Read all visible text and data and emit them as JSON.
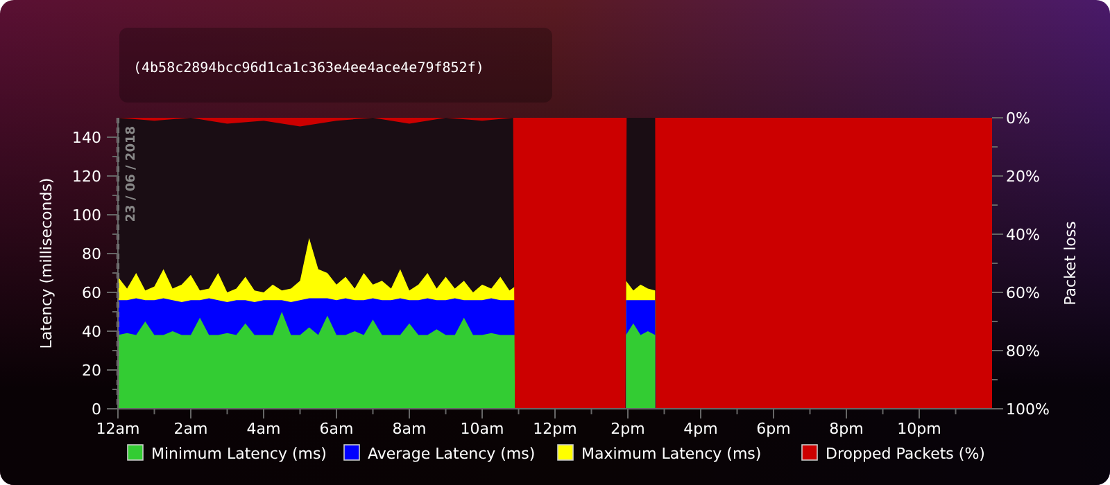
{
  "chart_data": {
    "type": "area",
    "subtitle": "(4b58c2894bcc96d1ca1c363e4ee4ace4e79f852f)",
    "ylabel": "Latency (milliseconds)",
    "y2label": "Packet loss",
    "xlim": [
      "2018-06-23T00:00",
      "2018-06-24T00:00"
    ],
    "xticks": [
      {
        "value": "2018-06-23T00:00",
        "label": "12am"
      },
      {
        "value": "2018-06-23T01:00",
        "label": null
      },
      {
        "value": "2018-06-23T02:00",
        "label": "2am"
      },
      {
        "value": "2018-06-23T03:00",
        "label": null
      },
      {
        "value": "2018-06-23T04:00",
        "label": "4am"
      },
      {
        "value": "2018-06-23T05:00",
        "label": null
      },
      {
        "value": "2018-06-23T06:00",
        "label": "6am"
      },
      {
        "value": "2018-06-23T07:00",
        "label": null
      },
      {
        "value": "2018-06-23T08:00",
        "label": "8am"
      },
      {
        "value": "2018-06-23T09:00",
        "label": null
      },
      {
        "value": "2018-06-23T10:00",
        "label": "10am"
      },
      {
        "value": "2018-06-23T11:00",
        "label": null
      },
      {
        "value": "2018-06-23T12:00",
        "label": "12pm"
      },
      {
        "value": "2018-06-23T13:00",
        "label": null
      },
      {
        "value": "2018-06-23T14:00",
        "label": "2pm"
      },
      {
        "value": "2018-06-23T15:00",
        "label": null
      },
      {
        "value": "2018-06-23T16:00",
        "label": "4pm"
      },
      {
        "value": "2018-06-23T17:00",
        "label": null
      },
      {
        "value": "2018-06-23T18:00",
        "label": "6pm"
      },
      {
        "value": "2018-06-23T19:00",
        "label": null
      },
      {
        "value": "2018-06-23T20:00",
        "label": "8pm"
      },
      {
        "value": "2018-06-23T21:00",
        "label": null
      },
      {
        "value": "2018-06-23T22:00",
        "label": "10pm"
      },
      {
        "value": "2018-06-23T23:00",
        "label": null
      }
    ],
    "ylim": [
      0,
      150
    ],
    "yticks": [
      0,
      {
        "value": 10,
        "label": null
      },
      20,
      {
        "value": 30,
        "label": null
      },
      40,
      {
        "value": 50,
        "label": null
      },
      60,
      {
        "value": 70,
        "label": null
      },
      80,
      {
        "value": 90,
        "label": null
      },
      100,
      {
        "value": 110,
        "label": null
      },
      120,
      {
        "value": 130,
        "label": null
      },
      140
    ],
    "y2lim": [
      100,
      0
    ],
    "y2ticks": [
      {
        "value": 0,
        "label": "0%"
      },
      {
        "value": 10,
        "label": null
      },
      {
        "value": 20,
        "label": "20%"
      },
      {
        "value": 30,
        "label": null
      },
      {
        "value": 40,
        "label": "40%"
      },
      {
        "value": 50,
        "label": null
      },
      {
        "value": 60,
        "label": "60%"
      },
      {
        "value": 70,
        "label": null
      },
      {
        "value": 80,
        "label": "80%"
      },
      {
        "value": 90,
        "label": null
      },
      {
        "value": 100,
        "label": "100%"
      }
    ],
    "ref_lines": [
      {
        "axis": "x",
        "value": "2018-06-23",
        "label": "23 / 06 / 2018",
        "color": "#888888",
        "line_style": "dashed"
      }
    ],
    "legend": "bottom",
    "series": [
      {
        "name": "Minimum Latency (ms)",
        "color": "#33cc33",
        "x": [
          "2018-06-23T00:00",
          "2018-06-23T00:15",
          "2018-06-23T00:30",
          "2018-06-23T00:45",
          "2018-06-23T01:00",
          "2018-06-23T01:15",
          "2018-06-23T01:30",
          "2018-06-23T01:45",
          "2018-06-23T02:00",
          "2018-06-23T02:15",
          "2018-06-23T02:30",
          "2018-06-23T02:45",
          "2018-06-23T03:00",
          "2018-06-23T03:15",
          "2018-06-23T03:30",
          "2018-06-23T03:45",
          "2018-06-23T04:00",
          "2018-06-23T04:15",
          "2018-06-23T04:30",
          "2018-06-23T04:45",
          "2018-06-23T05:00",
          "2018-06-23T05:15",
          "2018-06-23T05:30",
          "2018-06-23T05:45",
          "2018-06-23T06:00",
          "2018-06-23T06:15",
          "2018-06-23T06:30",
          "2018-06-23T06:45",
          "2018-06-23T07:00",
          "2018-06-23T07:15",
          "2018-06-23T07:30",
          "2018-06-23T07:45",
          "2018-06-23T08:00",
          "2018-06-23T08:15",
          "2018-06-23T08:30",
          "2018-06-23T08:45",
          "2018-06-23T09:00",
          "2018-06-23T09:15",
          "2018-06-23T09:30",
          "2018-06-23T09:45",
          "2018-06-23T10:00",
          "2018-06-23T10:15",
          "2018-06-23T10:30",
          "2018-06-23T10:45",
          "2018-06-23T10:54",
          "2018-06-23T12:00",
          "2018-06-23T13:57",
          "2018-06-23T14:09",
          "2018-06-23T14:21",
          "2018-06-23T14:33",
          "2018-06-23T14:45"
        ],
        "values": [
          38,
          39,
          38,
          45,
          38,
          38,
          40,
          38,
          38,
          47,
          38,
          38,
          39,
          38,
          44,
          38,
          38,
          38,
          50,
          38,
          38,
          42,
          38,
          48,
          38,
          38,
          40,
          38,
          46,
          38,
          38,
          38,
          44,
          38,
          38,
          41,
          38,
          38,
          47,
          38,
          38,
          39,
          38,
          38,
          38,
          null,
          38,
          44,
          38,
          40,
          38
        ]
      },
      {
        "name": "Average Latency (ms)",
        "color": "#0000ff",
        "x": [
          "2018-06-23T00:00",
          "2018-06-23T00:15",
          "2018-06-23T00:30",
          "2018-06-23T00:45",
          "2018-06-23T01:00",
          "2018-06-23T01:15",
          "2018-06-23T01:30",
          "2018-06-23T01:45",
          "2018-06-23T02:00",
          "2018-06-23T02:15",
          "2018-06-23T02:30",
          "2018-06-23T02:45",
          "2018-06-23T03:00",
          "2018-06-23T03:15",
          "2018-06-23T03:30",
          "2018-06-23T03:45",
          "2018-06-23T04:00",
          "2018-06-23T04:15",
          "2018-06-23T04:30",
          "2018-06-23T04:45",
          "2018-06-23T05:00",
          "2018-06-23T05:15",
          "2018-06-23T05:30",
          "2018-06-23T05:45",
          "2018-06-23T06:00",
          "2018-06-23T06:15",
          "2018-06-23T06:30",
          "2018-06-23T06:45",
          "2018-06-23T07:00",
          "2018-06-23T07:15",
          "2018-06-23T07:30",
          "2018-06-23T07:45",
          "2018-06-23T08:00",
          "2018-06-23T08:15",
          "2018-06-23T08:30",
          "2018-06-23T08:45",
          "2018-06-23T09:00",
          "2018-06-23T09:15",
          "2018-06-23T09:30",
          "2018-06-23T09:45",
          "2018-06-23T10:00",
          "2018-06-23T10:15",
          "2018-06-23T10:30",
          "2018-06-23T10:45",
          "2018-06-23T10:54",
          "2018-06-23T12:00",
          "2018-06-23T13:57",
          "2018-06-23T14:09",
          "2018-06-23T14:21",
          "2018-06-23T14:33",
          "2018-06-23T14:45"
        ],
        "values": [
          56,
          56,
          57,
          56,
          56,
          57,
          56,
          55,
          56,
          56,
          57,
          56,
          55,
          56,
          56,
          55,
          56,
          56,
          56,
          55,
          56,
          57,
          57,
          57,
          56,
          57,
          56,
          56,
          57,
          56,
          56,
          57,
          56,
          56,
          57,
          56,
          56,
          57,
          56,
          56,
          56,
          57,
          56,
          56,
          56,
          null,
          56,
          56,
          56,
          56,
          56
        ]
      },
      {
        "name": "Maximum Latency (ms)",
        "color": "#ffff00",
        "x": [
          "2018-06-23T00:00",
          "2018-06-23T00:15",
          "2018-06-23T00:30",
          "2018-06-23T00:45",
          "2018-06-23T01:00",
          "2018-06-23T01:15",
          "2018-06-23T01:30",
          "2018-06-23T01:45",
          "2018-06-23T02:00",
          "2018-06-23T02:15",
          "2018-06-23T02:30",
          "2018-06-23T02:45",
          "2018-06-23T03:00",
          "2018-06-23T03:15",
          "2018-06-23T03:30",
          "2018-06-23T03:45",
          "2018-06-23T04:00",
          "2018-06-23T04:15",
          "2018-06-23T04:30",
          "2018-06-23T04:45",
          "2018-06-23T05:00",
          "2018-06-23T05:15",
          "2018-06-23T05:30",
          "2018-06-23T05:45",
          "2018-06-23T06:00",
          "2018-06-23T06:15",
          "2018-06-23T06:30",
          "2018-06-23T06:45",
          "2018-06-23T07:00",
          "2018-06-23T07:15",
          "2018-06-23T07:30",
          "2018-06-23T07:45",
          "2018-06-23T08:00",
          "2018-06-23T08:15",
          "2018-06-23T08:30",
          "2018-06-23T08:45",
          "2018-06-23T09:00",
          "2018-06-23T09:15",
          "2018-06-23T09:30",
          "2018-06-23T09:45",
          "2018-06-23T10:00",
          "2018-06-23T10:15",
          "2018-06-23T10:30",
          "2018-06-23T10:45",
          "2018-06-23T10:54",
          "2018-06-23T12:00",
          "2018-06-23T13:57",
          "2018-06-23T14:09",
          "2018-06-23T14:21",
          "2018-06-23T14:33",
          "2018-06-23T14:45"
        ],
        "values": [
          68,
          62,
          70,
          61,
          63,
          72,
          62,
          64,
          69,
          61,
          62,
          70,
          60,
          62,
          68,
          61,
          60,
          64,
          61,
          62,
          66,
          88,
          72,
          70,
          64,
          68,
          62,
          70,
          64,
          66,
          62,
          72,
          61,
          64,
          70,
          62,
          68,
          62,
          66,
          60,
          64,
          62,
          68,
          61,
          63,
          null,
          66,
          61,
          64,
          62,
          61
        ]
      },
      {
        "name": "Dropped Packets (%)",
        "color": "#cc0000",
        "axis": "y2",
        "x": [
          "2018-06-23T00:00",
          "2018-06-23T01:00",
          "2018-06-23T02:00",
          "2018-06-23T03:00",
          "2018-06-23T04:00",
          "2018-06-23T05:00",
          "2018-06-23T06:00",
          "2018-06-23T07:00",
          "2018-06-23T08:00",
          "2018-06-23T09:00",
          "2018-06-23T10:00",
          "2018-06-23T10:51",
          "2018-06-23T10:54",
          "2018-06-23T13:56",
          "2018-06-23T13:58",
          "2018-06-23T14:45",
          "2018-06-23T14:46",
          "2018-06-24T00:00"
        ],
        "values": [
          0,
          1,
          0,
          2,
          1,
          3,
          1,
          0,
          2,
          0,
          1,
          0,
          100,
          100,
          0,
          0,
          100,
          100
        ]
      }
    ]
  }
}
